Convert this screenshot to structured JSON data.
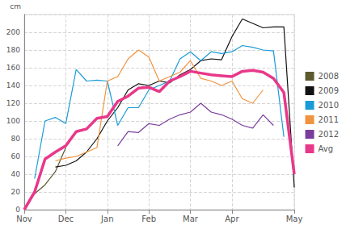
{
  "chart_data": {
    "type": "line",
    "ylabel": "cm",
    "categories": [
      "Nov",
      null,
      null,
      null,
      "Dec",
      null,
      null,
      null,
      "Jan",
      null,
      null,
      null,
      "Feb",
      null,
      null,
      null,
      "Mar",
      null,
      null,
      null,
      "Apr",
      null,
      null,
      null,
      null,
      null,
      "May"
    ],
    "series": [
      {
        "name": "2008",
        "color": "#5c5a2e",
        "values": [
          null,
          18,
          28,
          43,
          70,
          null,
          null,
          null,
          null,
          null,
          null,
          null,
          null,
          null,
          null,
          null,
          null,
          null,
          null,
          null,
          null,
          null,
          null,
          null,
          null,
          null,
          null
        ]
      },
      {
        "name": "2009",
        "color": "#111111",
        "values": [
          null,
          null,
          null,
          48,
          50,
          55,
          65,
          80,
          100,
          115,
          135,
          142,
          140,
          145,
          143,
          152,
          158,
          168,
          170,
          169,
          195,
          215,
          210,
          205,
          206,
          206,
          25
        ]
      },
      {
        "name": "2010",
        "color": "#1a9bd7",
        "values": [
          null,
          35,
          100,
          104,
          97,
          158,
          145,
          146,
          145,
          95,
          115,
          115,
          135,
          140,
          145,
          170,
          178,
          168,
          178,
          176,
          178,
          185,
          183,
          180,
          179,
          82,
          null
        ]
      },
      {
        "name": "2011",
        "color": "#f0923e",
        "values": [
          null,
          null,
          null,
          55,
          58,
          60,
          65,
          70,
          145,
          150,
          170,
          180,
          172,
          145,
          150,
          155,
          168,
          148,
          145,
          140,
          145,
          125,
          120,
          135,
          null,
          null,
          null
        ]
      },
      {
        "name": "2012",
        "color": "#7a3d9b",
        "values": [
          null,
          null,
          null,
          null,
          null,
          null,
          null,
          null,
          null,
          72,
          88,
          87,
          97,
          95,
          102,
          107,
          110,
          120,
          110,
          107,
          102,
          95,
          92,
          107,
          95,
          null,
          null
        ]
      },
      {
        "name": "Avg",
        "color": "#e8388a",
        "values": [
          0,
          20,
          57,
          65,
          72,
          88,
          91,
          103,
          105,
          122,
          128,
          137,
          138,
          133,
          145,
          150,
          156,
          154,
          152,
          151,
          150,
          156,
          157,
          155,
          148,
          132,
          40
        ]
      }
    ],
    "ylim": [
      0,
      220
    ],
    "yticks": [
      0,
      20,
      40,
      60,
      80,
      100,
      120,
      140,
      160,
      180,
      200
    ],
    "grid": true,
    "legend": "right"
  }
}
